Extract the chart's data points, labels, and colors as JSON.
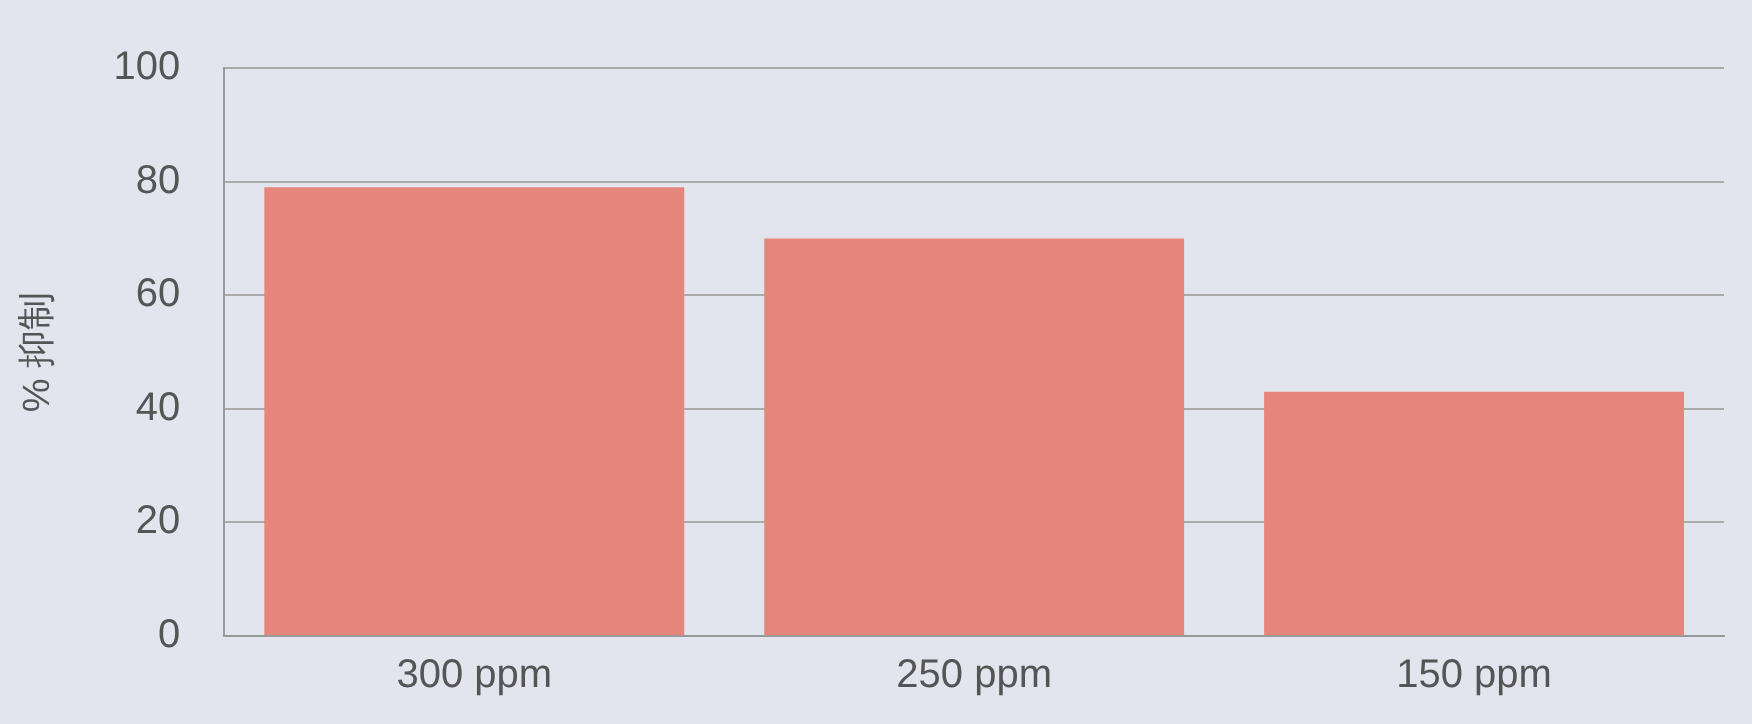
{
  "chart_data": {
    "type": "bar",
    "ylabel": "% 抑制",
    "categories": [
      "300 ppm",
      "250 ppm",
      "150 ppm"
    ],
    "values": [
      79,
      70,
      43
    ],
    "color": "#e5857c",
    "ylim": [
      0,
      100
    ],
    "yticks": [
      0,
      20,
      40,
      60,
      80,
      100
    ],
    "grid": "y"
  }
}
